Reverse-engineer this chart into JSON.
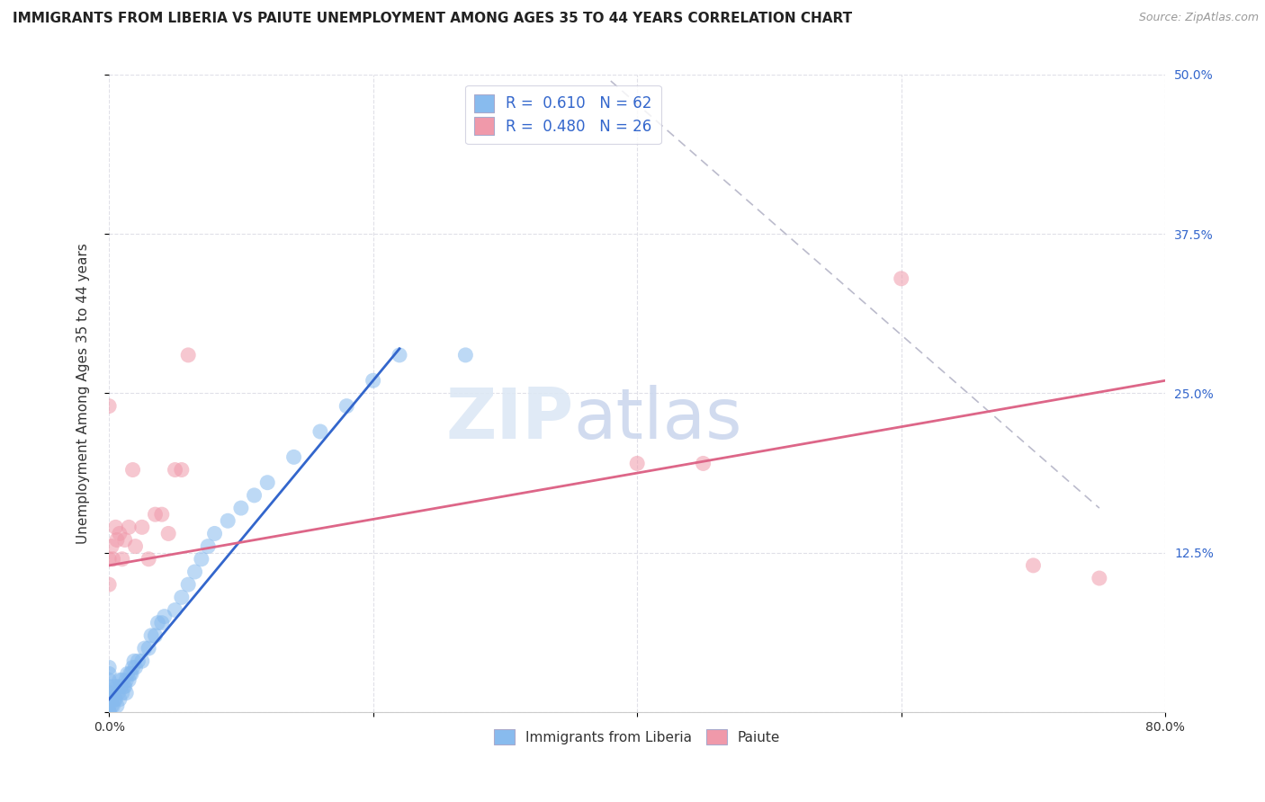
{
  "title": "IMMIGRANTS FROM LIBERIA VS PAIUTE UNEMPLOYMENT AMONG AGES 35 TO 44 YEARS CORRELATION CHART",
  "source": "Source: ZipAtlas.com",
  "ylabel": "Unemployment Among Ages 35 to 44 years",
  "xlim": [
    0.0,
    0.8
  ],
  "ylim": [
    0.0,
    0.5
  ],
  "xticks": [
    0.0,
    0.2,
    0.4,
    0.6,
    0.8
  ],
  "xtick_labels": [
    "0.0%",
    "",
    "",
    "",
    "80.0%"
  ],
  "yticks": [
    0.0,
    0.125,
    0.25,
    0.375,
    0.5
  ],
  "ytick_labels_right": [
    "",
    "12.5%",
    "25.0%",
    "37.5%",
    "50.0%"
  ],
  "bottom_legend": [
    {
      "label": "Immigrants from Liberia",
      "color": "#a8c8f0"
    },
    {
      "label": "Paiute",
      "color": "#f4a8b8"
    }
  ],
  "blue_color": "#88bbee",
  "pink_color": "#f099aa",
  "blue_line_color": "#3366cc",
  "pink_line_color": "#dd6688",
  "dot_line_color": "#bbbbcc",
  "background_color": "#ffffff",
  "grid_color": "#e0e0e8",
  "title_fontsize": 11,
  "axis_label_fontsize": 11,
  "tick_fontsize": 10,
  "blue_scatter_x": [
    0.0,
    0.0,
    0.0,
    0.0,
    0.0,
    0.0,
    0.0,
    0.0,
    0.0,
    0.0,
    0.002,
    0.002,
    0.003,
    0.003,
    0.004,
    0.004,
    0.005,
    0.006,
    0.006,
    0.007,
    0.008,
    0.008,
    0.009,
    0.01,
    0.01,
    0.011,
    0.012,
    0.013,
    0.013,
    0.014,
    0.015,
    0.016,
    0.017,
    0.018,
    0.019,
    0.02,
    0.022,
    0.025,
    0.027,
    0.03,
    0.032,
    0.035,
    0.037,
    0.04,
    0.042,
    0.05,
    0.055,
    0.06,
    0.065,
    0.07,
    0.075,
    0.08,
    0.09,
    0.1,
    0.11,
    0.12,
    0.14,
    0.16,
    0.18,
    0.2,
    0.22,
    0.27
  ],
  "blue_scatter_y": [
    0.0,
    0.0,
    0.005,
    0.008,
    0.01,
    0.015,
    0.02,
    0.025,
    0.03,
    0.035,
    0.005,
    0.01,
    0.005,
    0.015,
    0.01,
    0.02,
    0.01,
    0.005,
    0.02,
    0.015,
    0.01,
    0.025,
    0.02,
    0.015,
    0.025,
    0.02,
    0.02,
    0.015,
    0.025,
    0.03,
    0.025,
    0.03,
    0.03,
    0.035,
    0.04,
    0.035,
    0.04,
    0.04,
    0.05,
    0.05,
    0.06,
    0.06,
    0.07,
    0.07,
    0.075,
    0.08,
    0.09,
    0.1,
    0.11,
    0.12,
    0.13,
    0.14,
    0.15,
    0.16,
    0.17,
    0.18,
    0.2,
    0.22,
    0.24,
    0.26,
    0.28,
    0.28
  ],
  "pink_scatter_x": [
    0.0,
    0.0,
    0.0,
    0.002,
    0.003,
    0.005,
    0.006,
    0.008,
    0.01,
    0.012,
    0.015,
    0.018,
    0.02,
    0.025,
    0.03,
    0.035,
    0.04,
    0.045,
    0.05,
    0.055,
    0.06,
    0.4,
    0.45,
    0.6,
    0.7,
    0.75
  ],
  "pink_scatter_y": [
    0.24,
    0.12,
    0.1,
    0.13,
    0.12,
    0.145,
    0.135,
    0.14,
    0.12,
    0.135,
    0.145,
    0.19,
    0.13,
    0.145,
    0.12,
    0.155,
    0.155,
    0.14,
    0.19,
    0.19,
    0.28,
    0.195,
    0.195,
    0.34,
    0.115,
    0.105
  ],
  "blue_line_x": [
    0.0,
    0.22
  ],
  "blue_line_y": [
    0.01,
    0.285
  ],
  "pink_line_x": [
    0.0,
    0.8
  ],
  "pink_line_y": [
    0.115,
    0.26
  ],
  "dot_line_x": [
    0.38,
    0.75
  ],
  "dot_line_y": [
    0.495,
    0.16
  ]
}
